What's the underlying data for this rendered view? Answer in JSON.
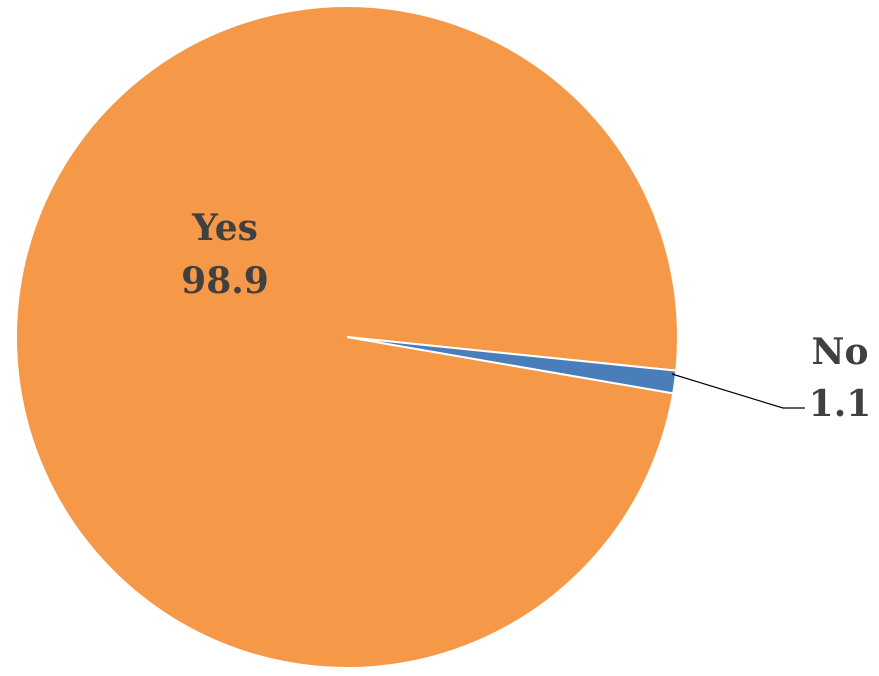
{
  "chart_data": {
    "type": "pie",
    "categories": [
      "Yes",
      "No"
    ],
    "values": [
      98.9,
      1.1
    ],
    "colors": [
      "#f59847",
      "#4a7ebb"
    ],
    "label_color": "#404040",
    "slice_border_color": "#ffffff",
    "leader_line_color": "#000000"
  }
}
